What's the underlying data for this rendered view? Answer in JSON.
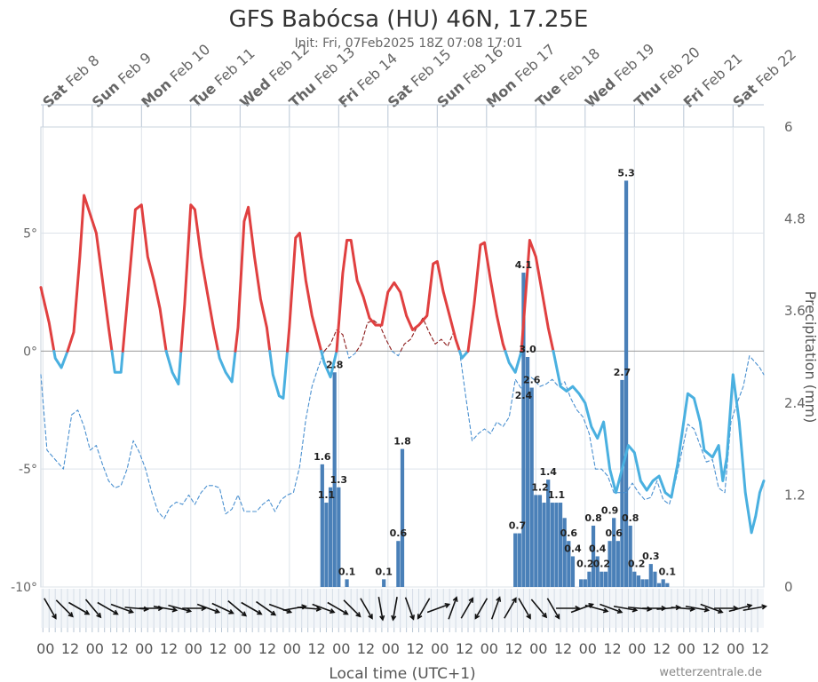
{
  "title": "GFS Babócsa (HU) 46N, 17.25E",
  "subtitle": "Init: Fri, 07Feb2025 18Z 07:08 17:01",
  "credit": "wetterzentrale.de",
  "xlabel": "Local time (UTC+1)",
  "ylabel_right": "Precipitation (mm)",
  "colors": {
    "temp_warm": "#e04040",
    "temp_cold": "#4ab0e0",
    "dew_warm": "#8b1a1a",
    "dew_cold": "#4a90d0",
    "precip": "#4a80b8",
    "grid": "#dde3ea",
    "zero_line": "#999999"
  },
  "chart_data": {
    "type": "line+bar",
    "x_unit": "hours from Sat Feb 8 00:00 local",
    "x_range": [
      -1,
      351
    ],
    "day_labels": [
      {
        "weekday": "Sat",
        "date": "Feb 8"
      },
      {
        "weekday": "Sun",
        "date": "Feb 9"
      },
      {
        "weekday": "Mon",
        "date": "Feb 10"
      },
      {
        "weekday": "Tue",
        "date": "Feb 11"
      },
      {
        "weekday": "Wed",
        "date": "Feb 12"
      },
      {
        "weekday": "Thu",
        "date": "Feb 13"
      },
      {
        "weekday": "Fri",
        "date": "Feb 14"
      },
      {
        "weekday": "Sat",
        "date": "Feb 15"
      },
      {
        "weekday": "Sun",
        "date": "Feb 16"
      },
      {
        "weekday": "Mon",
        "date": "Feb 17"
      },
      {
        "weekday": "Tue",
        "date": "Feb 18"
      },
      {
        "weekday": "Wed",
        "date": "Feb 19"
      },
      {
        "weekday": "Thu",
        "date": "Feb 20"
      },
      {
        "weekday": "Fri",
        "date": "Feb 21"
      },
      {
        "weekday": "Sat",
        "date": "Feb 22"
      }
    ],
    "x_tick_labels": [
      "00",
      "12",
      "00",
      "12",
      "00",
      "12",
      "00",
      "12",
      "00",
      "12",
      "00",
      "12",
      "00",
      "12",
      "00",
      "12",
      "00",
      "12",
      "00",
      "12",
      "00",
      "12",
      "00",
      "12",
      "00",
      "12",
      "00",
      "12",
      "00",
      "12"
    ],
    "temp_axis": {
      "range": [
        -10,
        9.5
      ],
      "ticks": [
        {
          "v": 5,
          "label": "5°"
        },
        {
          "v": 0,
          "label": "0°"
        },
        {
          "v": -5,
          "label": "-5°"
        },
        {
          "v": -10,
          "label": "-10°"
        }
      ]
    },
    "precip_axis": {
      "range": [
        0,
        6
      ],
      "ticks": [
        {
          "v": 6,
          "label": "6"
        },
        {
          "v": 4.8,
          "label": "4.8"
        },
        {
          "v": 3.6,
          "label": "3.6"
        },
        {
          "v": 2.4,
          "label": "2.4"
        },
        {
          "v": 1.2,
          "label": "1.2"
        },
        {
          "v": 0,
          "label": "0"
        }
      ]
    },
    "temperature": [
      [
        -1,
        2.7
      ],
      [
        3,
        1.2
      ],
      [
        6,
        -0.3
      ],
      [
        9,
        -0.7
      ],
      [
        12,
        0
      ],
      [
        15,
        0.8
      ],
      [
        18,
        4
      ],
      [
        20,
        6.6
      ],
      [
        23,
        5.8
      ],
      [
        26,
        5
      ],
      [
        29,
        3
      ],
      [
        32,
        1
      ],
      [
        35,
        -0.9
      ],
      [
        38,
        -0.9
      ],
      [
        42,
        3
      ],
      [
        45,
        6
      ],
      [
        48,
        6.2
      ],
      [
        51,
        4
      ],
      [
        54,
        3
      ],
      [
        57,
        1.8
      ],
      [
        60,
        0
      ],
      [
        63,
        -0.9
      ],
      [
        66,
        -1.4
      ],
      [
        69,
        2
      ],
      [
        72,
        6.2
      ],
      [
        74,
        6
      ],
      [
        77,
        4
      ],
      [
        80,
        2.5
      ],
      [
        83,
        1
      ],
      [
        86,
        -0.3
      ],
      [
        89,
        -0.9
      ],
      [
        92,
        -1.3
      ],
      [
        95,
        1
      ],
      [
        98,
        5.5
      ],
      [
        100,
        6.1
      ],
      [
        103,
        4
      ],
      [
        106,
        2.2
      ],
      [
        109,
        1
      ],
      [
        112,
        -1
      ],
      [
        115,
        -1.9
      ],
      [
        117,
        -2
      ],
      [
        120,
        1
      ],
      [
        123,
        4.8
      ],
      [
        125,
        5
      ],
      [
        128,
        3
      ],
      [
        131,
        1.5
      ],
      [
        134,
        0.5
      ],
      [
        137,
        -0.5
      ],
      [
        140,
        -1.1
      ],
      [
        143,
        0
      ],
      [
        146,
        3.3
      ],
      [
        148,
        4.7
      ],
      [
        150,
        4.7
      ],
      [
        153,
        3
      ],
      [
        156,
        2.3
      ],
      [
        159,
        1.4
      ],
      [
        162,
        1.1
      ],
      [
        165,
        1.1
      ],
      [
        168,
        2.5
      ],
      [
        171,
        2.9
      ],
      [
        174,
        2.5
      ],
      [
        177,
        1.5
      ],
      [
        180,
        0.9
      ],
      [
        183,
        1.1
      ],
      [
        187,
        1.5
      ],
      [
        190,
        3.7
      ],
      [
        192,
        3.8
      ],
      [
        195,
        2.5
      ],
      [
        198,
        1.5
      ],
      [
        201,
        0.5
      ],
      [
        204,
        -0.3
      ],
      [
        207,
        0
      ],
      [
        210,
        2
      ],
      [
        213,
        4.5
      ],
      [
        215,
        4.6
      ],
      [
        218,
        3
      ],
      [
        221,
        1.5
      ],
      [
        224,
        0.3
      ],
      [
        227,
        -0.5
      ],
      [
        230,
        -0.9
      ],
      [
        233,
        0
      ],
      [
        237,
        4.7
      ],
      [
        240,
        4
      ],
      [
        243,
        2.5
      ],
      [
        246,
        1
      ],
      [
        249,
        -0.2
      ],
      [
        252,
        -1.5
      ],
      [
        255,
        -1.7
      ],
      [
        258,
        -1.5
      ],
      [
        261,
        -1.8
      ],
      [
        264,
        -2.2
      ],
      [
        267,
        -3.2
      ],
      [
        270,
        -3.7
      ],
      [
        273,
        -3
      ],
      [
        276,
        -5
      ],
      [
        279,
        -6
      ],
      [
        282,
        -5
      ],
      [
        285,
        -4
      ],
      [
        288,
        -4.3
      ],
      [
        291,
        -5.5
      ],
      [
        294,
        -5.9
      ],
      [
        297,
        -5.5
      ],
      [
        300,
        -5.3
      ],
      [
        303,
        -6
      ],
      [
        306,
        -6.2
      ],
      [
        309,
        -4.8
      ],
      [
        312,
        -3
      ],
      [
        314,
        -1.8
      ],
      [
        317,
        -2
      ],
      [
        320,
        -3
      ],
      [
        322,
        -4.2
      ],
      [
        326,
        -4.5
      ],
      [
        329,
        -4
      ],
      [
        331,
        -5.5
      ],
      [
        333,
        -4.5
      ],
      [
        336,
        -1
      ],
      [
        339,
        -3
      ],
      [
        342,
        -6
      ],
      [
        345,
        -7.7
      ],
      [
        347,
        -7
      ],
      [
        349,
        -6
      ],
      [
        351,
        -5.5
      ]
    ],
    "dewpoint": [
      [
        -1,
        -1
      ],
      [
        2,
        -4.2
      ],
      [
        6,
        -4.6
      ],
      [
        10,
        -5
      ],
      [
        14,
        -2.7
      ],
      [
        17,
        -2.5
      ],
      [
        20,
        -3.2
      ],
      [
        23,
        -4.2
      ],
      [
        26,
        -4
      ],
      [
        29,
        -4.8
      ],
      [
        32,
        -5.5
      ],
      [
        35,
        -5.8
      ],
      [
        38,
        -5.7
      ],
      [
        41,
        -5
      ],
      [
        44,
        -3.8
      ],
      [
        47,
        -4.3
      ],
      [
        50,
        -5
      ],
      [
        53,
        -6
      ],
      [
        56,
        -6.8
      ],
      [
        59,
        -7.1
      ],
      [
        62,
        -6.6
      ],
      [
        65,
        -6.4
      ],
      [
        68,
        -6.5
      ],
      [
        71,
        -6.1
      ],
      [
        74,
        -6.5
      ],
      [
        77,
        -6
      ],
      [
        80,
        -5.7
      ],
      [
        83,
        -5.7
      ],
      [
        86,
        -5.8
      ],
      [
        89,
        -6.9
      ],
      [
        92,
        -6.7
      ],
      [
        95,
        -6.1
      ],
      [
        98,
        -6.8
      ],
      [
        101,
        -6.8
      ],
      [
        104,
        -6.8
      ],
      [
        107,
        -6.5
      ],
      [
        110,
        -6.3
      ],
      [
        113,
        -6.8
      ],
      [
        116,
        -6.3
      ],
      [
        119,
        -6.1
      ],
      [
        122,
        -6
      ],
      [
        125,
        -4.9
      ],
      [
        128,
        -2.9
      ],
      [
        131,
        -1.5
      ],
      [
        134,
        -0.7
      ],
      [
        137,
        0
      ],
      [
        140,
        0.3
      ],
      [
        143,
        0.9
      ],
      [
        146,
        0.7
      ],
      [
        149,
        -0.3
      ],
      [
        152,
        -0.1
      ],
      [
        155,
        0.3
      ],
      [
        158,
        1.2
      ],
      [
        161,
        1.3
      ],
      [
        164,
        1.1
      ],
      [
        167,
        0.5
      ],
      [
        170,
        0
      ],
      [
        173,
        -0.2
      ],
      [
        176,
        0.3
      ],
      [
        179,
        0.5
      ],
      [
        182,
        1
      ],
      [
        185,
        1.4
      ],
      [
        188,
        0.8
      ],
      [
        191,
        0.3
      ],
      [
        194,
        0.5
      ],
      [
        197,
        0.2
      ],
      [
        200,
        0.8
      ],
      [
        203,
        -0.1
      ],
      [
        206,
        -2
      ],
      [
        209,
        -3.8
      ],
      [
        212,
        -3.5
      ],
      [
        215,
        -3.3
      ],
      [
        218,
        -3.5
      ],
      [
        221,
        -3
      ],
      [
        224,
        -3.2
      ],
      [
        227,
        -2.8
      ],
      [
        230,
        -1.2
      ],
      [
        233,
        -1.6
      ],
      [
        236,
        -1
      ],
      [
        239,
        -1.2
      ],
      [
        242,
        -1.5
      ],
      [
        245,
        -1.4
      ],
      [
        248,
        -1.2
      ],
      [
        251,
        -1.5
      ],
      [
        254,
        -1.3
      ],
      [
        257,
        -2
      ],
      [
        260,
        -2.5
      ],
      [
        263,
        -2.8
      ],
      [
        266,
        -3.5
      ],
      [
        269,
        -5
      ],
      [
        272,
        -5
      ],
      [
        275,
        -5.3
      ],
      [
        278,
        -6
      ],
      [
        281,
        -6
      ],
      [
        284,
        -6
      ],
      [
        287,
        -5.6
      ],
      [
        290,
        -6
      ],
      [
        293,
        -6.3
      ],
      [
        296,
        -6.2
      ],
      [
        299,
        -5.5
      ],
      [
        302,
        -6.3
      ],
      [
        305,
        -6.5
      ],
      [
        308,
        -5.5
      ],
      [
        311,
        -4.3
      ],
      [
        314,
        -3.1
      ],
      [
        317,
        -3.3
      ],
      [
        320,
        -4
      ],
      [
        323,
        -4.7
      ],
      [
        326,
        -4.6
      ],
      [
        329,
        -5.8
      ],
      [
        332,
        -6
      ],
      [
        335,
        -3
      ],
      [
        338,
        -2.2
      ],
      [
        341,
        -1.5
      ],
      [
        344,
        -0.2
      ],
      [
        347,
        -0.5
      ],
      [
        349,
        -0.7
      ],
      [
        351,
        -1
      ]
    ],
    "precipitation_bars": [
      [
        136,
        1.6
      ],
      [
        138,
        1.1
      ],
      [
        140,
        1.3
      ],
      [
        142,
        2.8
      ],
      [
        144,
        1.3
      ],
      [
        148,
        0.1
      ],
      [
        166,
        0.1
      ],
      [
        173,
        0.6
      ],
      [
        175,
        1.8
      ],
      [
        230,
        0.7
      ],
      [
        232,
        0.7
      ],
      [
        234,
        4.1
      ],
      [
        236,
        3.0
      ],
      [
        238,
        2.6
      ],
      [
        240,
        1.2
      ],
      [
        242,
        1.2
      ],
      [
        244,
        1.1
      ],
      [
        246,
        1.4
      ],
      [
        248,
        1.1
      ],
      [
        250,
        1.1
      ],
      [
        252,
        1.1
      ],
      [
        254,
        0.9
      ],
      [
        256,
        0.6
      ],
      [
        258,
        0.4
      ],
      [
        262,
        0.1
      ],
      [
        264,
        0.1
      ],
      [
        266,
        0.2
      ],
      [
        268,
        0.8
      ],
      [
        270,
        0.4
      ],
      [
        272,
        0.2
      ],
      [
        274,
        0.2
      ],
      [
        276,
        0.6
      ],
      [
        278,
        0.9
      ],
      [
        280,
        0.6
      ],
      [
        282,
        2.7
      ],
      [
        284,
        5.3
      ],
      [
        286,
        0.8
      ],
      [
        288,
        0.2
      ],
      [
        290,
        0.15
      ],
      [
        292,
        0.1
      ],
      [
        294,
        0.1
      ],
      [
        296,
        0.3
      ],
      [
        298,
        0.2
      ],
      [
        300,
        0.05
      ],
      [
        302,
        0.1
      ],
      [
        304,
        0.05
      ]
    ],
    "precip_labels": [
      {
        "x": 136,
        "y": 1.6,
        "text": "1.6"
      },
      {
        "x": 138,
        "y": 1.1,
        "text": "1.1"
      },
      {
        "x": 142,
        "y": 2.8,
        "text": "2.8"
      },
      {
        "x": 144,
        "y": 1.3,
        "text": "1.3"
      },
      {
        "x": 148,
        "y": 0.1,
        "text": "0.1"
      },
      {
        "x": 166,
        "y": 0.1,
        "text": "0.1"
      },
      {
        "x": 173,
        "y": 0.6,
        "text": "0.6"
      },
      {
        "x": 175,
        "y": 1.8,
        "text": "1.8"
      },
      {
        "x": 231,
        "y": 0.7,
        "text": "0.7"
      },
      {
        "x": 234,
        "y": 4.1,
        "text": "4.1"
      },
      {
        "x": 236,
        "y": 3.0,
        "text": "3.0"
      },
      {
        "x": 234,
        "y": 2.4,
        "text": "2.4"
      },
      {
        "x": 238,
        "y": 2.6,
        "text": "2.6"
      },
      {
        "x": 242,
        "y": 1.2,
        "text": "1.2"
      },
      {
        "x": 246,
        "y": 1.4,
        "text": "1.4"
      },
      {
        "x": 250,
        "y": 1.1,
        "text": "1.1"
      },
      {
        "x": 256,
        "y": 0.6,
        "text": "0.6"
      },
      {
        "x": 258,
        "y": 0.4,
        "text": "0.4"
      },
      {
        "x": 264,
        "y": 0.2,
        "text": "0.2"
      },
      {
        "x": 268,
        "y": 0.8,
        "text": "0.8"
      },
      {
        "x": 270,
        "y": 0.4,
        "text": "0.4"
      },
      {
        "x": 272,
        "y": 0.2,
        "text": "0.2"
      },
      {
        "x": 276,
        "y": 0.9,
        "text": "0.9"
      },
      {
        "x": 278,
        "y": 0.6,
        "text": "0.6"
      },
      {
        "x": 282,
        "y": 2.7,
        "text": "2.7"
      },
      {
        "x": 284,
        "y": 5.3,
        "text": "5.3"
      },
      {
        "x": 286,
        "y": 0.8,
        "text": "0.8"
      },
      {
        "x": 289,
        "y": 0.2,
        "text": "0.2"
      },
      {
        "x": 296,
        "y": 0.3,
        "text": "0.3"
      },
      {
        "x": 304,
        "y": 0.1,
        "text": "0.1"
      }
    ],
    "wind_direction_deg": [
      330,
      315,
      300,
      320,
      300,
      290,
      275,
      270,
      280,
      285,
      270,
      290,
      295,
      310,
      300,
      305,
      290,
      260,
      275,
      290,
      300,
      315,
      330,
      350,
      10,
      340,
      30,
      250,
      200,
      210,
      30,
      200,
      210,
      330,
      320,
      330,
      270,
      250,
      285,
      290,
      280,
      275,
      270,
      265,
      275,
      280,
      290,
      270,
      255,
      260
    ]
  }
}
